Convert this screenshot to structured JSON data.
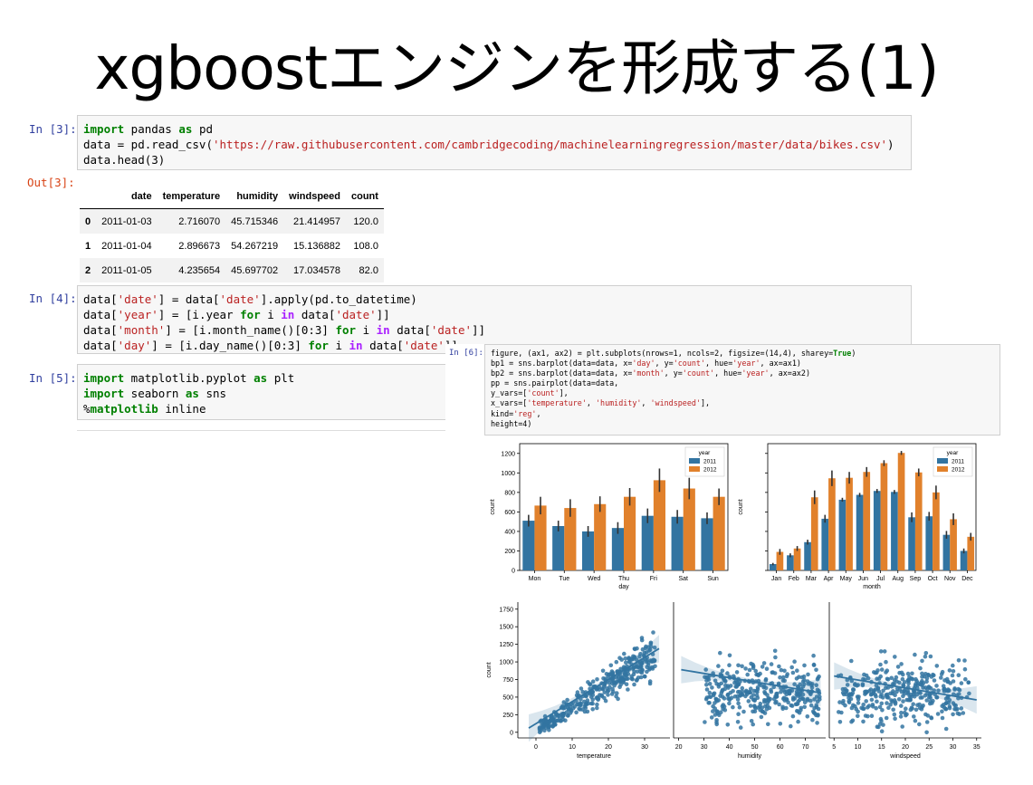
{
  "slide": {
    "title": "xgboostエンジンを形成する(1)"
  },
  "cells": [
    {
      "prompt": "In [3]:",
      "lines": [
        [
          [
            "kw",
            "import"
          ],
          [
            "t",
            " pandas "
          ],
          [
            "kw",
            "as"
          ],
          [
            "t",
            " pd"
          ]
        ],
        [
          [
            "t",
            "data = pd.read_csv("
          ],
          [
            "str",
            "'https://raw.githubusercontent.com/cambridgecoding/machinelearningregression/master/data/bikes.csv'"
          ],
          [
            "t",
            ")"
          ]
        ],
        [
          [
            "t",
            "data.head(3)"
          ]
        ]
      ]
    },
    {
      "prompt": "In [4]:",
      "lines": [
        [
          [
            "t",
            "data["
          ],
          [
            "str",
            "'date'"
          ],
          [
            "t",
            "] = data["
          ],
          [
            "str",
            "'date'"
          ],
          [
            "t",
            "].apply(pd.to_datetime)"
          ]
        ],
        [
          [
            "t",
            "data["
          ],
          [
            "str",
            "'year'"
          ],
          [
            "t",
            "] = [i.year "
          ],
          [
            "kw",
            "for"
          ],
          [
            "t",
            " i "
          ],
          [
            "kw2",
            "in"
          ],
          [
            "t",
            " data["
          ],
          [
            "str",
            "'date'"
          ],
          [
            "t",
            "]]"
          ]
        ],
        [
          [
            "t",
            "data["
          ],
          [
            "str",
            "'month'"
          ],
          [
            "t",
            "] = [i.month_name()[0:3] "
          ],
          [
            "kw",
            "for"
          ],
          [
            "t",
            " i "
          ],
          [
            "kw2",
            "in"
          ],
          [
            "t",
            " data["
          ],
          [
            "str",
            "'date'"
          ],
          [
            "t",
            "]]"
          ]
        ],
        [
          [
            "t",
            "data["
          ],
          [
            "str",
            "'day'"
          ],
          [
            "t",
            "] = [i.day_name()[0:3] "
          ],
          [
            "kw",
            "for"
          ],
          [
            "t",
            " i "
          ],
          [
            "kw2",
            "in"
          ],
          [
            "t",
            " data["
          ],
          [
            "str",
            "'date'"
          ],
          [
            "t",
            "]]"
          ]
        ]
      ]
    },
    {
      "prompt": "In [5]:",
      "lines": [
        [
          [
            "kw",
            "import"
          ],
          [
            "t",
            " matplotlib.pyplot "
          ],
          [
            "kw",
            "as"
          ],
          [
            "t",
            " plt"
          ]
        ],
        [
          [
            "kw",
            "import"
          ],
          [
            "t",
            " seaborn "
          ],
          [
            "kw",
            "as"
          ],
          [
            "t",
            " sns"
          ]
        ],
        [
          [
            "t",
            "%"
          ],
          [
            "kw",
            "matplotlib"
          ],
          [
            "t",
            " inline"
          ]
        ]
      ]
    },
    {
      "prompt": "In [6]:",
      "lines": [
        [
          [
            "t",
            "figure, (ax1, ax2) = plt.subplots(nrows=1, ncols=2, figsize=(14,4), sharey="
          ],
          [
            "kw",
            "True"
          ],
          [
            "t",
            ")"
          ]
        ],
        [
          [
            "t",
            "bp1 = sns.barplot(data=data, x="
          ],
          [
            "str",
            "'day'"
          ],
          [
            "t",
            ", y="
          ],
          [
            "str",
            "'count'"
          ],
          [
            "t",
            ", hue="
          ],
          [
            "str",
            "'year'"
          ],
          [
            "t",
            ", ax=ax1)"
          ]
        ],
        [
          [
            "t",
            "bp2 = sns.barplot(data=data, x="
          ],
          [
            "str",
            "'month'"
          ],
          [
            "t",
            ", y="
          ],
          [
            "str",
            "'count'"
          ],
          [
            "t",
            ", hue="
          ],
          [
            "str",
            "'year'"
          ],
          [
            "t",
            ", ax=ax2)"
          ]
        ],
        [
          [
            "t",
            "pp = sns.pairplot(data=data,"
          ]
        ],
        [
          [
            "t",
            "y_vars=["
          ],
          [
            "str",
            "'count'"
          ],
          [
            "t",
            "],"
          ]
        ],
        [
          [
            "t",
            "x_vars=["
          ],
          [
            "str",
            "'temperature'"
          ],
          [
            "t",
            ", "
          ],
          [
            "str",
            "'humidity'"
          ],
          [
            "t",
            ", "
          ],
          [
            "str",
            "'windspeed'"
          ],
          [
            "t",
            "],"
          ]
        ],
        [
          [
            "t",
            "kind="
          ],
          [
            "str",
            "'reg'"
          ],
          [
            "t",
            ","
          ]
        ],
        [
          [
            "t",
            "height=4)"
          ]
        ]
      ]
    }
  ],
  "output": {
    "prompt": "Out[3]:",
    "columns": [
      "",
      "date",
      "temperature",
      "humidity",
      "windspeed",
      "count"
    ],
    "rows": [
      [
        "0",
        "2011-01-03",
        "2.716070",
        "45.715346",
        "21.414957",
        "120.0"
      ],
      [
        "1",
        "2011-01-04",
        "2.896673",
        "54.267219",
        "15.136882",
        "108.0"
      ],
      [
        "2",
        "2011-01-05",
        "4.235654",
        "45.697702",
        "17.034578",
        "82.0"
      ]
    ]
  },
  "chart_data": [
    {
      "type": "bar",
      "xlabel": "day",
      "ylabel": "count",
      "ylim": [
        0,
        1300
      ],
      "yticks": [
        0,
        200,
        400,
        600,
        800,
        1000,
        1200
      ],
      "categories": [
        "Mon",
        "Tue",
        "Wed",
        "Thu",
        "Fri",
        "Sat",
        "Sun"
      ],
      "legend_title": "year",
      "legend_position": "top-right",
      "series": [
        {
          "name": "2011",
          "color": "#3274a1",
          "values": [
            510,
            455,
            400,
            435,
            560,
            550,
            535
          ],
          "err": [
            60,
            55,
            55,
            60,
            75,
            70,
            60
          ]
        },
        {
          "name": "2012",
          "color": "#e1812c",
          "values": [
            665,
            640,
            680,
            755,
            925,
            840,
            755
          ],
          "err": [
            90,
            90,
            80,
            90,
            120,
            110,
            85
          ]
        }
      ]
    },
    {
      "type": "bar",
      "xlabel": "month",
      "ylabel": "count",
      "ylim": [
        0,
        1300
      ],
      "categories": [
        "Jan",
        "Feb",
        "Mar",
        "Apr",
        "May",
        "Jun",
        "Jul",
        "Aug",
        "Sep",
        "Oct",
        "Nov",
        "Dec"
      ],
      "legend_title": "year",
      "legend_position": "top-right",
      "series": [
        {
          "name": "2011",
          "color": "#3274a1",
          "values": [
            65,
            155,
            290,
            530,
            725,
            775,
            815,
            805,
            545,
            555,
            365,
            200
          ],
          "err": [
            12,
            20,
            25,
            40,
            20,
            20,
            20,
            20,
            50,
            45,
            40,
            25
          ]
        },
        {
          "name": "2012",
          "color": "#e1812c",
          "values": [
            190,
            225,
            750,
            945,
            950,
            1010,
            1100,
            1205,
            1005,
            800,
            525,
            345
          ],
          "err": [
            30,
            25,
            70,
            80,
            60,
            50,
            30,
            20,
            40,
            70,
            60,
            40
          ]
        }
      ]
    },
    {
      "type": "scatter",
      "ylabel": "count",
      "ylim": [
        -80,
        1850
      ],
      "yticks": [
        0,
        250,
        500,
        750,
        1000,
        1250,
        1500,
        1750
      ],
      "color": "#3274a1",
      "panels": [
        {
          "xlabel": "temperature",
          "xlim": [
            -5,
            37
          ],
          "xticks": [
            0,
            10,
            20,
            30
          ],
          "fit": [
            [
              -2,
              60
            ],
            [
              34,
              1190
            ]
          ]
        },
        {
          "xlabel": "humidity",
          "xlim": [
            18,
            78
          ],
          "xticks": [
            20,
            30,
            40,
            50,
            60,
            70
          ],
          "fit": [
            [
              21,
              890
            ],
            [
              76,
              560
            ]
          ]
        },
        {
          "xlabel": "windspeed",
          "xlim": [
            4,
            36
          ],
          "xticks": [
            5,
            10,
            15,
            20,
            25,
            30,
            35
          ],
          "fit": [
            [
              5,
              800
            ],
            [
              35,
              460
            ]
          ]
        }
      ]
    }
  ]
}
